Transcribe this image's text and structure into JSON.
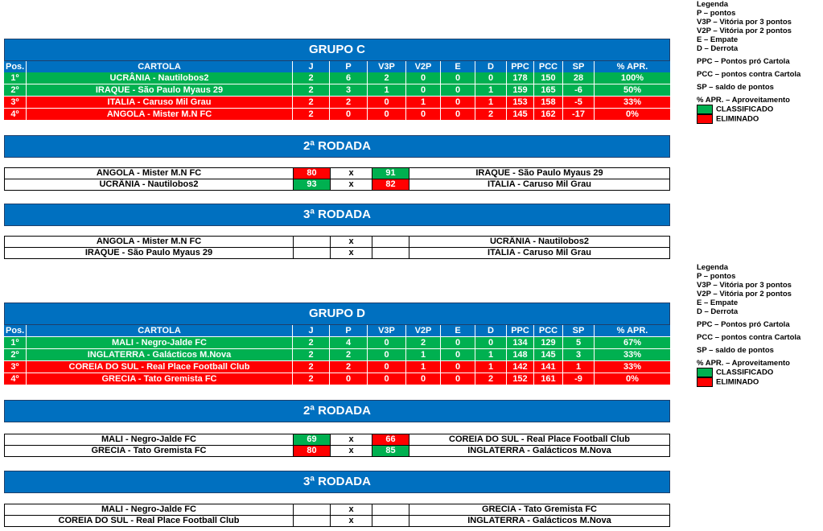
{
  "groups": {
    "c": {
      "title": "GRUPO C",
      "headers": [
        "Pos.",
        "CARTOLA",
        "J",
        "P",
        "V3P",
        "V2P",
        "E",
        "D",
        "PPC",
        "PCC",
        "SP",
        "% APR."
      ],
      "rows": [
        [
          "1º",
          "UCRÂNIA - Nautilobos2",
          "2",
          "6",
          "2",
          "0",
          "0",
          "0",
          "178",
          "150",
          "28",
          "100%"
        ],
        [
          "2º",
          "IRAQUE - São Paulo Myaus 29",
          "2",
          "3",
          "1",
          "0",
          "0",
          "1",
          "159",
          "165",
          "-6",
          "50%"
        ],
        [
          "3º",
          "ITALIA - Caruso Mil Grau",
          "2",
          "2",
          "0",
          "1",
          "0",
          "1",
          "153",
          "158",
          "-5",
          "33%"
        ],
        [
          "4º",
          "ANGOLA - Mister M.N FC",
          "2",
          "0",
          "0",
          "0",
          "0",
          "2",
          "145",
          "162",
          "-17",
          "0%"
        ]
      ],
      "round2_title": "2ª RODADA",
      "round2": [
        {
          "home": "ANGOLA - Mister M.N FC",
          "home_score": "80",
          "x": "x",
          "away_score": "91",
          "away": "IRAQUE - São Paulo Myaus 29"
        },
        {
          "home": "UCRÂNIA - Nautilobos2",
          "home_score": "93",
          "x": "x",
          "away_score": "82",
          "away": "ITALIA - Caruso Mil Grau"
        }
      ],
      "round3_title": "3ª RODADA",
      "round3": [
        {
          "home": "ANGOLA - Mister M.N FC",
          "home_score": "",
          "x": "x",
          "away_score": "",
          "away": "UCRÂNIA - Nautilobos2"
        },
        {
          "home": "IRAQUE - São Paulo Myaus 29",
          "home_score": "",
          "x": "x",
          "away_score": "",
          "away": "ITALIA - Caruso Mil Grau"
        }
      ]
    },
    "d": {
      "title": "GRUPO D",
      "headers": [
        "Pos.",
        "CARTOLA",
        "J",
        "P",
        "V3P",
        "V2P",
        "E",
        "D",
        "PPC",
        "PCC",
        "SP",
        "% APR."
      ],
      "rows": [
        [
          "1º",
          "MALI - Negro-Jalde FC",
          "2",
          "4",
          "0",
          "2",
          "0",
          "0",
          "134",
          "129",
          "5",
          "67%"
        ],
        [
          "2º",
          "INGLATERRA - Galácticos M.Nova",
          "2",
          "2",
          "0",
          "1",
          "0",
          "1",
          "148",
          "145",
          "3",
          "33%"
        ],
        [
          "3º",
          "COREIA DO SUL - Real Place Football Club",
          "2",
          "2",
          "0",
          "1",
          "0",
          "1",
          "142",
          "141",
          "1",
          "33%"
        ],
        [
          "4º",
          "GRECIA - Tato Gremista FC",
          "2",
          "0",
          "0",
          "0",
          "0",
          "2",
          "152",
          "161",
          "-9",
          "0%"
        ]
      ],
      "round2_title": "2ª RODADA",
      "round2": [
        {
          "home": "MALI - Negro-Jalde FC",
          "home_score": "69",
          "x": "x",
          "away_score": "66",
          "away": "COREIA DO SUL - Real Place Football Club"
        },
        {
          "home": "GRECIA - Tato Gremista FC",
          "home_score": "80",
          "x": "x",
          "away_score": "85",
          "away": "INGLATERRA - Galácticos M.Nova"
        }
      ],
      "round3_title": "3ª RODADA",
      "round3": [
        {
          "home": "MALI - Negro-Jalde FC",
          "home_score": "",
          "x": "x",
          "away_score": "",
          "away": "GRECIA - Tato Gremista FC"
        },
        {
          "home": "COREIA DO SUL - Real Place Football Club",
          "home_score": "",
          "x": "x",
          "away_score": "",
          "away": "INGLATERRA - Galácticos M.Nova"
        }
      ]
    }
  },
  "legend": {
    "title": "Legenda",
    "lines": [
      "P – pontos",
      "V3P – Vitória por 3 pontos",
      "V2P – Vitória por 2 pontos",
      "E – Empate",
      "D – Derrota"
    ],
    "extra": [
      "PPC – Pontos pró Cartola",
      "PCC – pontos contra Cartola",
      "SP – saldo de pontos",
      "% APR. – Aproveitamento"
    ],
    "classified": "CLASSIFICADO",
    "eliminated": "ELIMINADO"
  },
  "colors": {
    "header_blue": "#0070c0",
    "classified_green": "#00b050",
    "eliminated_red": "#ff0000"
  }
}
